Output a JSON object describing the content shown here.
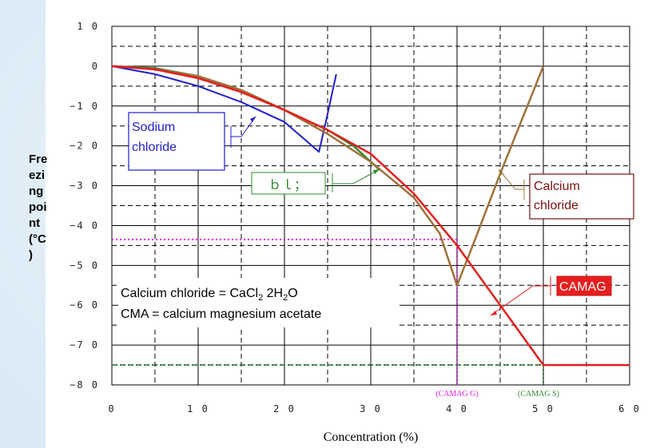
{
  "chart_data": {
    "type": "line",
    "xlabel": "Concentration (%)",
    "ylabel": "Fre\nezi\nng\npoi\nnt\n(°C\n)",
    "xlim": [
      0,
      60
    ],
    "ylim": [
      -80,
      10
    ],
    "x_ticks": [
      "0",
      "1 0",
      "2 0",
      "3 0",
      "4 0",
      "5 0",
      "6 0"
    ],
    "y_ticks": [
      "1 0",
      "0",
      "−1 0",
      "−2 0",
      "−3 0",
      "−4 0",
      "−5 0",
      "−6 0",
      "−7 0",
      "−8 0"
    ],
    "grid": true,
    "series": [
      {
        "name": "Sodium chloride",
        "color": "#1f1fd0",
        "points": [
          [
            0,
            0
          ],
          [
            5,
            -2
          ],
          [
            10,
            -5
          ],
          [
            15,
            -9
          ],
          [
            20,
            -14
          ],
          [
            24,
            -21.5
          ],
          [
            25,
            -12
          ],
          [
            26,
            -2
          ]
        ]
      },
      {
        "name": "",
        "color": "#2e8b2e",
        "points": [
          [
            0,
            0
          ],
          [
            5,
            -0.5
          ],
          [
            10,
            -2.5
          ],
          [
            15,
            -6
          ],
          [
            20,
            -11
          ],
          [
            25,
            -16
          ],
          [
            28,
            -20
          ],
          [
            31,
            -26
          ]
        ]
      },
      {
        "name": "Calcium chloride",
        "color": "#a0703a",
        "points": [
          [
            0,
            0
          ],
          [
            5,
            -0.7
          ],
          [
            10,
            -2.5
          ],
          [
            15,
            -6
          ],
          [
            20,
            -11
          ],
          [
            25,
            -17
          ],
          [
            30,
            -24
          ],
          [
            35,
            -33
          ],
          [
            38,
            -42
          ],
          [
            40,
            -55
          ],
          [
            42,
            -44
          ],
          [
            45,
            -27
          ],
          [
            50,
            0
          ]
        ]
      },
      {
        "name": "CAMAG",
        "color": "#e61e1e",
        "points": [
          [
            0,
            0
          ],
          [
            5,
            -0.8
          ],
          [
            10,
            -3
          ],
          [
            15,
            -6.5
          ],
          [
            20,
            -11
          ],
          [
            25,
            -16
          ],
          [
            30,
            -22
          ],
          [
            35,
            -32
          ],
          [
            40,
            -45
          ],
          [
            45,
            -60
          ],
          [
            50,
            -75
          ],
          [
            60,
            -75
          ]
        ]
      }
    ],
    "reference_lines": [
      {
        "label": "(CAMAG G)",
        "color": "#e020e0",
        "x": 40,
        "y": -43.5
      },
      {
        "label": "(CAMAG S)",
        "color": "#2e8b2e",
        "x": 50,
        "y": -75
      }
    ],
    "annotations": {
      "sodium_label": [
        "Sodium",
        "chloride"
      ],
      "cma_label": "ｂｌ；",
      "calcium_label": [
        "Calcium",
        "chloride"
      ],
      "camag_label": "CAMAG",
      "note_line1": {
        "prefix": "Calcium chloride = CaCl",
        "sub1": "2",
        "mid": " 2H",
        "sub2": "2",
        "suffix": "O"
      },
      "note_line2": "CMA = calcium magnesium acetate"
    }
  }
}
